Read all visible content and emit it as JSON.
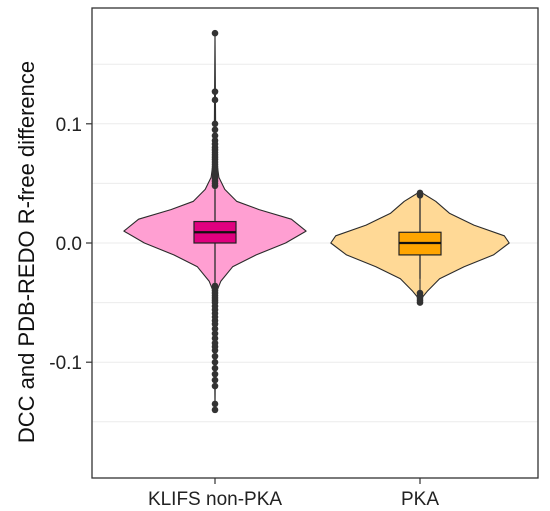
{
  "chart_data": {
    "type": "violin",
    "title": "",
    "xlabel": "",
    "ylabel": "DCC and PDB-REDO R-free difference",
    "ylim": [
      -0.2,
      0.2
    ],
    "yticks": [
      {
        "value": -0.1,
        "label": "-0.1"
      },
      {
        "value": 0.0,
        "label": "0.0"
      },
      {
        "value": 0.1,
        "label": "0.1"
      }
    ],
    "grid": true,
    "legend": "none",
    "categories": [
      "KLIFS non-PKA",
      "PKA"
    ],
    "series": [
      {
        "category": "KLIFS non-PKA",
        "violin_fill": "#ff9fd2",
        "box_fill": "#e0007f",
        "box": {
          "min": -0.033,
          "q1": 0.0,
          "median": 0.009,
          "q3": 0.018,
          "max": 0.045
        },
        "density": [
          [
            -0.14,
            0.0
          ],
          [
            -0.06,
            0.008
          ],
          [
            -0.04,
            0.02
          ],
          [
            -0.032,
            0.06
          ],
          [
            -0.02,
            0.18
          ],
          [
            -0.01,
            0.42
          ],
          [
            0.0,
            0.72
          ],
          [
            0.01,
            0.93
          ],
          [
            0.02,
            0.78
          ],
          [
            0.028,
            0.45
          ],
          [
            0.035,
            0.22
          ],
          [
            0.045,
            0.1
          ],
          [
            0.055,
            0.04
          ],
          [
            0.07,
            0.015
          ],
          [
            0.1,
            0.006
          ],
          [
            0.14,
            0.003
          ],
          [
            0.176,
            0.0
          ]
        ],
        "outliers": [
          -0.14,
          -0.135,
          -0.12,
          -0.115,
          -0.11,
          -0.105,
          -0.1,
          -0.095,
          -0.09,
          -0.087,
          -0.084,
          -0.08,
          -0.076,
          -0.072,
          -0.068,
          -0.065,
          -0.062,
          -0.059,
          -0.056,
          -0.053,
          -0.05,
          -0.048,
          -0.046,
          -0.044,
          -0.042,
          -0.04,
          -0.038,
          -0.036,
          0.048,
          0.05,
          0.052,
          0.054,
          0.056,
          0.058,
          0.06,
          0.062,
          0.064,
          0.066,
          0.068,
          0.07,
          0.072,
          0.074,
          0.076,
          0.078,
          0.08,
          0.083,
          0.086,
          0.09,
          0.095,
          0.1,
          0.12,
          0.127,
          0.176
        ]
      },
      {
        "category": "PKA",
        "violin_fill": "#ffd996",
        "box_fill": "#ffa500",
        "box": {
          "min": -0.03,
          "q1": -0.01,
          "median": 0.0,
          "q3": 0.009,
          "max": 0.04
        },
        "density": [
          [
            -0.05,
            0.0
          ],
          [
            -0.045,
            0.03
          ],
          [
            -0.04,
            0.08
          ],
          [
            -0.03,
            0.2
          ],
          [
            -0.02,
            0.45
          ],
          [
            -0.01,
            0.75
          ],
          [
            0.0,
            0.91
          ],
          [
            0.006,
            0.86
          ],
          [
            0.015,
            0.55
          ],
          [
            0.025,
            0.3
          ],
          [
            0.035,
            0.16
          ],
          [
            0.042,
            0.02
          ],
          [
            0.043,
            0.0
          ]
        ],
        "outliers": [
          -0.05,
          -0.048,
          -0.046,
          -0.044,
          -0.042,
          0.04,
          0.042
        ]
      }
    ]
  }
}
